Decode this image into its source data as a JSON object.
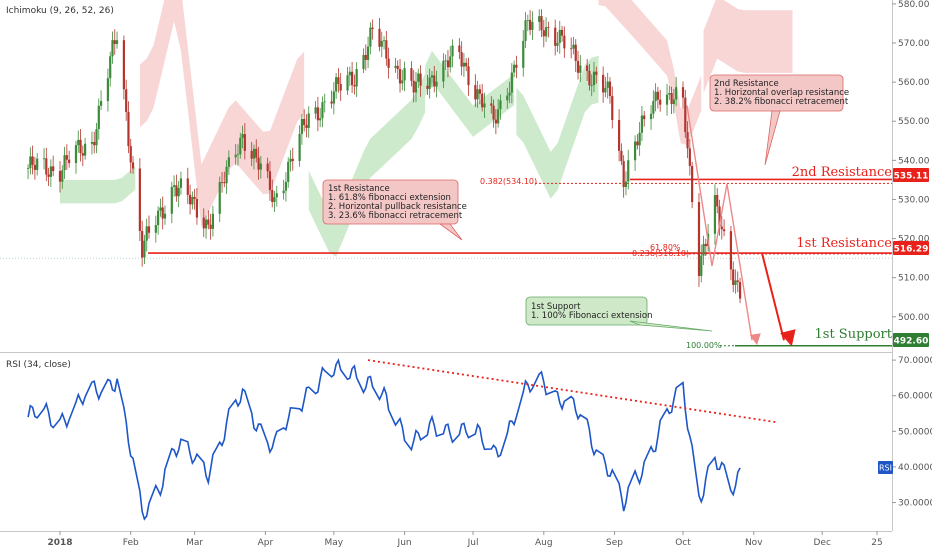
{
  "indicator_labels": {
    "price": "Ichimoku (9, 26, 52, 26)",
    "rsi": "RSI (34, close)",
    "rsi_tag": "RSI"
  },
  "colors": {
    "up_candle": "#3c8a3a",
    "down_candle": "#b3352e",
    "resistance": "#e8221b",
    "support": "#2e7d32",
    "rsi_line": "#1e56c8",
    "cloud_bull": "#c6e6c3",
    "cloud_bear": "#f7cfcf",
    "fib": "#e8221b"
  },
  "levels": {
    "second_resistance": {
      "price": 535.11,
      "tag": "535.11",
      "label": "2nd Resistance"
    },
    "first_resistance": {
      "price": 516.29,
      "tag": "516.29",
      "label": "1st Resistance"
    },
    "first_support": {
      "price": 492.6,
      "tag": "492.60",
      "label": "1st Support"
    }
  },
  "fib_labels": {
    "f382": "0.382(534.10)",
    "f618": "61.80%",
    "f236": "0.236(516.10)",
    "f100": "100.00%"
  },
  "notes": {
    "first_resistance": {
      "title": "1st Resistance",
      "lines": [
        "1. 61.8% fibonacci extension",
        "2. Horizontal pullback resistance",
        "3. 23.6% fibonacci retracement"
      ]
    },
    "second_resistance": {
      "title": "2nd Resistance",
      "lines": [
        "1. Horizontal overlap resistance",
        "2. 38.2% fibonacci retracement"
      ]
    },
    "first_support": {
      "title": "1st Support",
      "lines": [
        "1. 100% Fibonacci extension"
      ]
    }
  },
  "x_axis": {
    "ticks": [
      "2018",
      "Feb",
      "Mar",
      "Apr",
      "May",
      "Jun",
      "Jul",
      "Aug",
      "Sep",
      "Oct",
      "Nov",
      "Dec",
      "25"
    ]
  },
  "chart_data": [
    {
      "type": "candlestick",
      "title": "Ichimoku (9, 26, 52, 26)",
      "yaxis": {
        "ticks": [
          500,
          510,
          520,
          530,
          540,
          550,
          560,
          570,
          580
        ],
        "range": [
          491,
          581
        ]
      },
      "y_tick_labels": [
        "500.00",
        "510.00",
        "520.00",
        "530.00",
        "540.00",
        "550.00",
        "560.00",
        "570.00",
        "580.00"
      ],
      "dates": [
        "2018-01-01",
        "2018-01-15",
        "2018-01-26",
        "2018-02-06",
        "2018-02-20",
        "2018-03-07",
        "2018-03-22",
        "2018-04-05",
        "2018-04-20",
        "2018-05-10",
        "2018-05-18",
        "2018-06-05",
        "2018-06-25",
        "2018-07-10",
        "2018-07-25",
        "2018-08-01",
        "2018-08-15",
        "2018-08-30",
        "2018-09-05",
        "2018-09-20",
        "2018-10-01",
        "2018-10-08",
        "2018-10-15",
        "2018-10-22",
        "2018-10-26"
      ],
      "close": [
        538,
        545,
        572,
        517,
        534,
        524,
        547,
        530,
        551,
        562,
        572,
        558,
        567,
        549,
        574,
        575,
        566,
        556,
        536,
        558,
        554,
        514,
        528,
        513,
        507
      ],
      "y_ranges": [
        [
          491,
          581
        ]
      ]
    },
    {
      "type": "line",
      "title": "RSI (34, close)",
      "series": [
        {
          "name": "RSI",
          "values": [
            54,
            60,
            66,
            25,
            45,
            40,
            60,
            45,
            63,
            68,
            62,
            48,
            52,
            44,
            61,
            65,
            55,
            40,
            28,
            50,
            61,
            33,
            42,
            32,
            39
          ]
        }
      ],
      "dates": [
        "2018-01-01",
        "2018-01-15",
        "2018-01-26",
        "2018-02-06",
        "2018-02-20",
        "2018-03-07",
        "2018-03-22",
        "2018-04-05",
        "2018-04-20",
        "2018-05-10",
        "2018-05-18",
        "2018-06-05",
        "2018-06-25",
        "2018-07-10",
        "2018-07-25",
        "2018-08-01",
        "2018-08-15",
        "2018-08-30",
        "2018-09-05",
        "2018-09-20",
        "2018-10-01",
        "2018-10-08",
        "2018-10-15",
        "2018-10-22",
        "2018-10-26"
      ],
      "yaxis": {
        "ticks": [
          30,
          40,
          50,
          60,
          70
        ],
        "range": [
          22,
          72
        ]
      },
      "y_tick_labels": [
        "30.0000",
        "40.0000",
        "50.0000",
        "60.0000",
        "70.0000"
      ]
    }
  ]
}
